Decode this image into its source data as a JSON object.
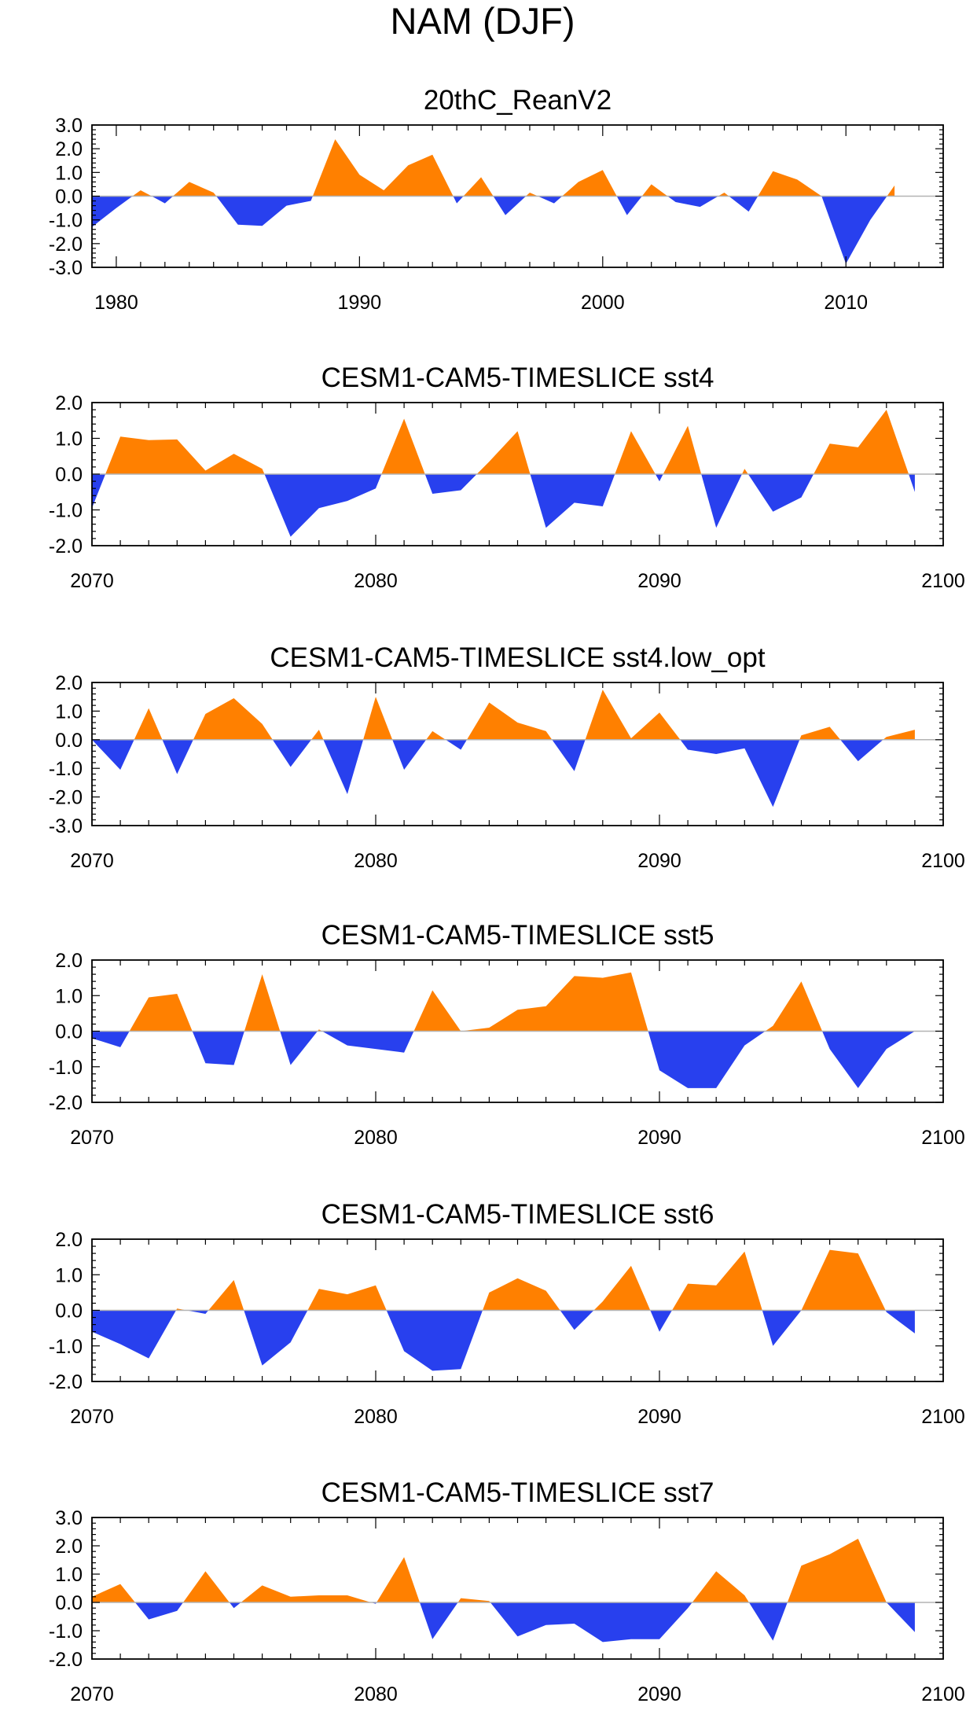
{
  "figure_title": "NAM (DJF)",
  "colors": {
    "positive": "#ff8000",
    "negative": "#2840ee",
    "axis": "#000000",
    "zero_line": "#b3b3b3"
  },
  "chart_data": [
    {
      "type": "area",
      "title": "20thC_ReanV2",
      "xlabel": "",
      "ylabel": "",
      "xlim": [
        1979,
        2014
      ],
      "ylim": [
        -3.0,
        3.0
      ],
      "xticks": [
        1980,
        1990,
        2000,
        2010
      ],
      "xtick_labels": [
        "1980",
        "1990",
        "2000",
        "2010"
      ],
      "yticks": [
        3.0,
        2.0,
        1.0,
        0.0,
        -1.0,
        -2.0,
        -3.0
      ],
      "ytick_labels": [
        "3.0",
        "2.0",
        "1.0",
        "0.0",
        "-1.0",
        "-2.0",
        "-3.0"
      ],
      "x_start": 1979,
      "values": [
        -1.3,
        -0.5,
        0.25,
        -0.3,
        0.6,
        0.15,
        -1.2,
        -1.25,
        -0.4,
        -0.2,
        2.4,
        0.9,
        0.25,
        1.3,
        1.75,
        -0.3,
        0.8,
        -0.8,
        0.15,
        -0.3,
        0.6,
        1.1,
        -0.8,
        0.5,
        -0.25,
        -0.45,
        0.15,
        -0.65,
        1.05,
        0.7,
        0.0,
        -2.85,
        -1.0,
        0.45
      ]
    },
    {
      "type": "area",
      "title": "CESM1-CAM5-TIMESLICE sst4",
      "xlabel": "",
      "ylabel": "",
      "xlim": [
        2070,
        2100
      ],
      "ylim": [
        -2.0,
        2.0
      ],
      "xticks": [
        2070,
        2080,
        2090,
        2100
      ],
      "xtick_labels": [
        "2070",
        "2080",
        "2090",
        "2100"
      ],
      "yticks": [
        2.0,
        1.0,
        0.0,
        -1.0,
        -2.0
      ],
      "ytick_labels": [
        "2.0",
        "1.0",
        "0.0",
        "-1.0",
        "-2.0"
      ],
      "x_start": 2070,
      "values": [
        -0.95,
        1.05,
        0.95,
        0.97,
        0.1,
        0.57,
        0.15,
        -1.75,
        -0.95,
        -0.75,
        -0.4,
        1.55,
        -0.55,
        -0.45,
        0.35,
        1.2,
        -1.5,
        -0.8,
        -0.9,
        1.2,
        -0.2,
        1.35,
        -1.5,
        0.15,
        -1.05,
        -0.65,
        0.85,
        0.75,
        1.8,
        -0.5
      ]
    },
    {
      "type": "area",
      "title": "CESM1-CAM5-TIMESLICE sst4.low_opt",
      "xlabel": "",
      "ylabel": "",
      "xlim": [
        2070,
        2100
      ],
      "ylim": [
        -3.0,
        2.0
      ],
      "xticks": [
        2070,
        2080,
        2090,
        2100
      ],
      "xtick_labels": [
        "2070",
        "2080",
        "2090",
        "2100"
      ],
      "yticks": [
        2.0,
        1.0,
        0.0,
        -1.0,
        -2.0,
        -3.0
      ],
      "ytick_labels": [
        "2.0",
        "1.0",
        "0.0",
        "-1.0",
        "-2.0",
        "-3.0"
      ],
      "x_start": 2070,
      "values": [
        0.0,
        -1.05,
        1.1,
        -1.2,
        0.9,
        1.45,
        0.55,
        -0.95,
        0.35,
        -1.9,
        1.5,
        -1.05,
        0.3,
        -0.35,
        1.3,
        0.6,
        0.3,
        -1.1,
        1.75,
        0.05,
        0.95,
        -0.35,
        -0.5,
        -0.3,
        -2.35,
        0.15,
        0.45,
        -0.75,
        0.1,
        0.35
      ]
    },
    {
      "type": "area",
      "title": "CESM1-CAM5-TIMESLICE sst5",
      "xlabel": "",
      "ylabel": "",
      "xlim": [
        2070,
        2100
      ],
      "ylim": [
        -2.0,
        2.0
      ],
      "xticks": [
        2070,
        2080,
        2090,
        2100
      ],
      "xtick_labels": [
        "2070",
        "2080",
        "2090",
        "2100"
      ],
      "yticks": [
        2.0,
        1.0,
        0.0,
        -1.0,
        -2.0
      ],
      "ytick_labels": [
        "2.0",
        "1.0",
        "0.0",
        "-1.0",
        "-2.0"
      ],
      "x_start": 2070,
      "values": [
        -0.2,
        -0.45,
        0.95,
        1.05,
        -0.9,
        -0.95,
        1.6,
        -0.95,
        0.05,
        -0.4,
        -0.5,
        -0.6,
        1.15,
        0.0,
        0.1,
        0.6,
        0.7,
        1.55,
        1.5,
        1.65,
        -1.1,
        -1.6,
        -1.6,
        -0.4,
        0.15,
        1.4,
        -0.5,
        -1.6,
        -0.5,
        0.0
      ]
    },
    {
      "type": "area",
      "title": "CESM1-CAM5-TIMESLICE sst6",
      "xlabel": "",
      "ylabel": "",
      "xlim": [
        2070,
        2100
      ],
      "ylim": [
        -2.0,
        2.0
      ],
      "xticks": [
        2070,
        2080,
        2090,
        2100
      ],
      "xtick_labels": [
        "2070",
        "2080",
        "2090",
        "2100"
      ],
      "yticks": [
        2.0,
        1.0,
        0.0,
        -1.0,
        -2.0
      ],
      "ytick_labels": [
        "2.0",
        "1.0",
        "0.0",
        "-1.0",
        "-2.0"
      ],
      "x_start": 2070,
      "values": [
        -0.6,
        -0.95,
        -1.35,
        0.05,
        -0.1,
        0.85,
        -1.55,
        -0.9,
        0.6,
        0.45,
        0.7,
        -1.15,
        -1.7,
        -1.65,
        0.5,
        0.9,
        0.55,
        -0.55,
        0.25,
        1.25,
        -0.6,
        0.75,
        0.7,
        1.65,
        -1.0,
        0.0,
        1.7,
        1.6,
        -0.05,
        -0.65
      ]
    },
    {
      "type": "area",
      "title": "CESM1-CAM5-TIMESLICE sst7",
      "xlabel": "",
      "ylabel": "",
      "xlim": [
        2070,
        2100
      ],
      "ylim": [
        -2.0,
        3.0
      ],
      "xticks": [
        2070,
        2080,
        2090,
        2100
      ],
      "xtick_labels": [
        "2070",
        "2080",
        "2090",
        "2100"
      ],
      "yticks": [
        3.0,
        2.0,
        1.0,
        0.0,
        -1.0,
        -2.0
      ],
      "ytick_labels": [
        "3.0",
        "2.0",
        "1.0",
        "0.0",
        "-1.0",
        "-2.0"
      ],
      "x_start": 2070,
      "values": [
        0.2,
        0.65,
        -0.6,
        -0.3,
        1.1,
        -0.2,
        0.6,
        0.2,
        0.25,
        0.25,
        -0.05,
        1.6,
        -1.3,
        0.15,
        0.05,
        -1.2,
        -0.8,
        -0.75,
        -1.4,
        -1.3,
        -1.3,
        -0.2,
        1.1,
        0.25,
        -1.35,
        1.3,
        1.7,
        2.25,
        0.0,
        -1.05
      ]
    }
  ]
}
